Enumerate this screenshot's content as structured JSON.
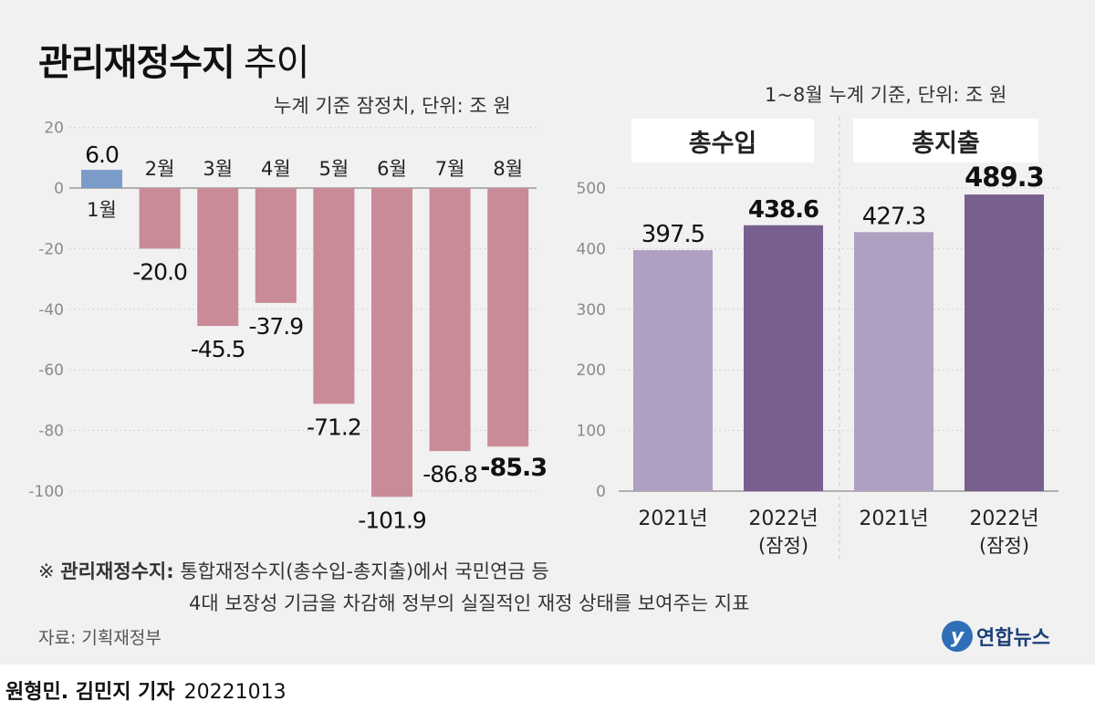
{
  "header": {
    "title_bold": "관리재정수지",
    "title_normal": "추이"
  },
  "chart_data": [
    {
      "type": "bar",
      "unit_note": "누계 기준 잠정치, 단위: 조 원",
      "categories": [
        "1월",
        "2월",
        "3월",
        "4월",
        "5월",
        "6월",
        "7월",
        "8월"
      ],
      "values": [
        6.0,
        -20.0,
        -45.5,
        -37.9,
        -71.2,
        -101.9,
        -86.8,
        -85.3
      ],
      "value_labels": [
        "6.0",
        "-20.0",
        "-45.5",
        "-37.9",
        "-71.2",
        "-101.9",
        "-86.8",
        "-85.3"
      ],
      "y_ticks": [
        "20",
        "0",
        "-20",
        "-40",
        "-60",
        "-80",
        "-100"
      ],
      "ylim": [
        -110,
        20
      ],
      "colors": {
        "positive": "#7b9cc9",
        "negative": "#c98b98"
      },
      "grid": true,
      "xlabel": "",
      "ylabel": ""
    },
    {
      "type": "bar",
      "unit_note": "1~8월 누계 기준, 단위: 조 원",
      "groups": [
        {
          "name": "총수입",
          "bars": [
            {
              "label": "2021년",
              "sublabel": "",
              "value": 397.5,
              "value_label": "397.5"
            },
            {
              "label": "2022년",
              "sublabel": "(잠정)",
              "value": 438.6,
              "value_label": "438.6"
            }
          ]
        },
        {
          "name": "총지출",
          "bars": [
            {
              "label": "2021년",
              "sublabel": "",
              "value": 427.3,
              "value_label": "427.3"
            },
            {
              "label": "2022년",
              "sublabel": "(잠정)",
              "value": 489.3,
              "value_label": "489.3"
            }
          ]
        }
      ],
      "y_ticks": [
        "500",
        "400",
        "300",
        "200",
        "100",
        "0"
      ],
      "ylim": [
        0,
        500
      ],
      "colors": {
        "y2021": "#afa0c2",
        "y2022": "#775f8e"
      },
      "grid": true,
      "xlabel": "",
      "ylabel": ""
    }
  ],
  "notes": {
    "marker": "※",
    "term": "관리재정수지:",
    "line1": "통합재정수지(총수입-총지출)에서 국민연금 등",
    "line2": "4대 보장성 기금을 차감해 정부의 실질적인 재정 상태를 보여주는 지표"
  },
  "source": "자료: 기획재정부",
  "logo": {
    "mark": "y",
    "text": "연합뉴스"
  },
  "credit": {
    "authors": "원형민. 김민지 기자",
    "date": "20221013"
  }
}
